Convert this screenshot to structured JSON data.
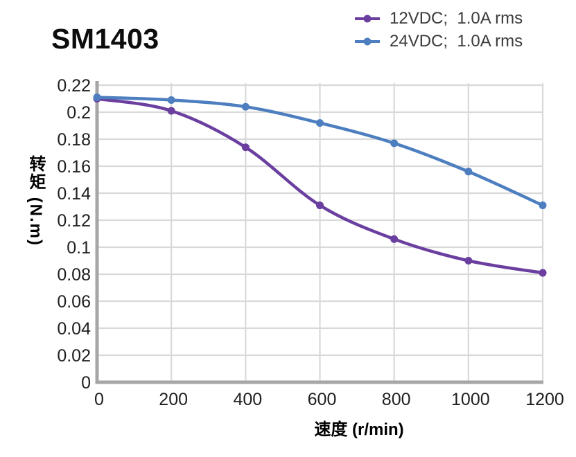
{
  "header": {
    "title": "SM1403"
  },
  "chart_data": {
    "type": "line",
    "title": "SM1403",
    "xlabel": "速度 (r/min)",
    "ylabel": "转矩 (N.m)",
    "xlim": [
      0,
      1200
    ],
    "ylim": [
      0,
      0.22
    ],
    "grid": true,
    "legend_position": "top-right",
    "x": [
      0,
      200,
      400,
      600,
      800,
      1000,
      1200
    ],
    "x_tick_labels": [
      "0",
      "200",
      "400",
      "600",
      "800",
      "1000",
      "1200"
    ],
    "y_tick_labels": [
      "0",
      "0.02",
      "0.04",
      "0.06",
      "0.08",
      "0.1",
      "0.12",
      "0.14",
      "0.16",
      "0.18",
      "0.2",
      "0.22"
    ],
    "y_tick_step": 0.02,
    "series": [
      {
        "name": "12VDC;  1.0A rms",
        "color": "#6a3fa0",
        "values": [
          0.21,
          0.201,
          0.174,
          0.131,
          0.106,
          0.09,
          0.081
        ]
      },
      {
        "name": "24VDC;  1.0A rms",
        "color": "#4d7ebf",
        "values": [
          0.211,
          0.209,
          0.204,
          0.192,
          0.177,
          0.156,
          0.131
        ]
      }
    ],
    "colors": {
      "gridline": "#d9d9d9",
      "axis": "#a6a6a6",
      "tick_text": "#1f1f1f"
    }
  }
}
